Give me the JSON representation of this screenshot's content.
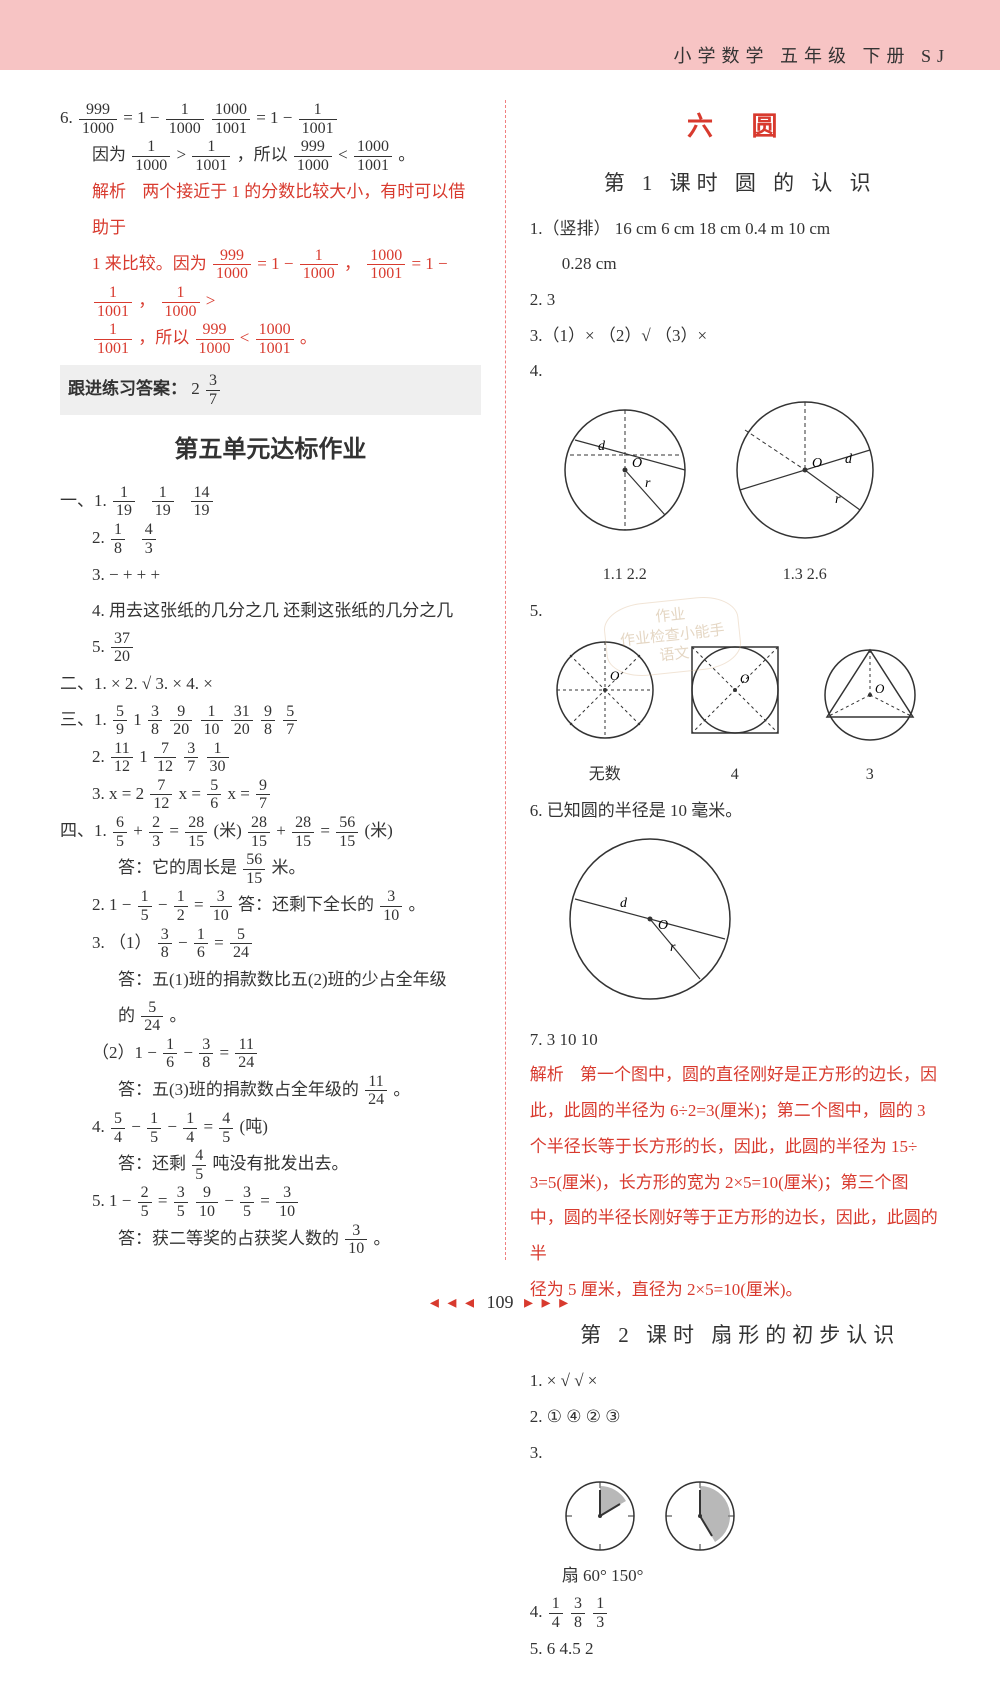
{
  "header": {
    "right": "小学数学  五年级  下册  SJ"
  },
  "page_number": "109",
  "left": {
    "q6_line1_a": "6. ",
    "q6_line1_b": " = 1 − ",
    "q6_line1_c": "   ",
    "q6_line1_d": " = 1 − ",
    "q6_frac_999_1000_n": "999",
    "q6_frac_999_1000_d": "1000",
    "q6_frac_1_1000_n": "1",
    "q6_frac_1_1000_d": "1000",
    "q6_frac_1000_1001_n": "1000",
    "q6_frac_1000_1001_d": "1001",
    "q6_frac_1_1001_n": "1",
    "q6_frac_1_1001_d": "1001",
    "q6_line2_a": "因为 ",
    "q6_line2_b": " > ",
    "q6_line2_c": " ，所以 ",
    "q6_line2_d": " < ",
    "q6_line2_e": "。",
    "q6_expl_lbl": "解析",
    "q6_expl_1": "两个接近于 1 的分数比较大小，有时可以借助于",
    "q6_expl_2a": "1 来比较。因为 ",
    "q6_expl_2b": " = 1 − ",
    "q6_expl_2c": "，",
    "q6_expl_2d": " = 1 − ",
    "q6_expl_2e": "，",
    "q6_expl_2f": " >",
    "q6_expl_3a": "",
    "q6_expl_3b": "，所以 ",
    "q6_expl_3c": " < ",
    "q6_expl_3d": "。",
    "follow_lbl": "跟进练习答案：",
    "follow_ans": "2",
    "follow_frac_n": "3",
    "follow_frac_d": "7",
    "unit_title": "第五单元达标作业",
    "s1": "一、1. ",
    "s1_f1n": "1",
    "s1_f1d": "19",
    "s1_f2n": "1",
    "s1_f2d": "19",
    "s1_f3n": "14",
    "s1_f3d": "19",
    "s1_2": "2. ",
    "s1_2f1n": "1",
    "s1_2f1d": "8",
    "s1_2f2n": "4",
    "s1_2f2d": "3",
    "s1_3": "3.  −   +   +   +",
    "s1_4": "4. 用去这张纸的几分之几   还剩这张纸的几分之几",
    "s1_5": "5. ",
    "s1_5fn": "37",
    "s1_5fd": "20",
    "s2": "二、1. ×   2. √   3. ×   4. ×",
    "s3": "三、1. ",
    "s3_1_vals": [
      "5/9",
      "1",
      "3/8",
      "9/20",
      "1/10",
      "31/20",
      "9/8",
      "5/7"
    ],
    "s3_2": "2. ",
    "s3_2_vals": [
      "11/12",
      "1",
      "7/12",
      "3/7",
      "1/30"
    ],
    "s3_3a": "3.  x = 2",
    "s3_3f1n": "7",
    "s3_3f1d": "12",
    "s3_3b": "   x = ",
    "s3_3f2n": "5",
    "s3_3f2d": "6",
    "s3_3c": "   x = ",
    "s3_3f3n": "9",
    "s3_3f3d": "7",
    "s4": "四、1. ",
    "s4_1a_n": "6",
    "s4_1a_d": "5",
    "s4_1b_n": "2",
    "s4_1b_d": "3",
    "s4_1c_n": "28",
    "s4_1c_d": "15",
    "s4_1_mid": " (米)   ",
    "s4_1d_n": "28",
    "s4_1d_d": "15",
    "s4_1e_n": "28",
    "s4_1e_d": "15",
    "s4_1f_n": "56",
    "s4_1f_d": "15",
    "s4_1_end": " (米)",
    "s4_1_ans": "答：它的周长是",
    "s4_1_ans_f_n": "56",
    "s4_1_ans_f_d": "15",
    "s4_1_ans_end": "米。",
    "s4_2": "2.  1 − ",
    "s4_2f1n": "1",
    "s4_2f1d": "5",
    "s4_2_m": " − ",
    "s4_2f2n": "1",
    "s4_2f2d": "2",
    "s4_2_eq": " = ",
    "s4_2f3n": "3",
    "s4_2f3d": "10",
    "s4_2_ans": "   答：还剩下全长的",
    "s4_2_ans_end": "。",
    "s4_3": "3. （1）",
    "s4_3f1n": "3",
    "s4_3f1d": "8",
    "s4_3_m": " − ",
    "s4_3f2n": "1",
    "s4_3f2d": "6",
    "s4_3_eq": " = ",
    "s4_3f3n": "5",
    "s4_3f3d": "24",
    "s4_3_ans1": "答：五(1)班的捐款数比五(2)班的少占全年级",
    "s4_3_ans2a": "的",
    "s4_3_ans2_fn": "5",
    "s4_3_ans2_fd": "24",
    "s4_3_ans2b": "。",
    "s4_3b": "（2）1 − ",
    "s4_3bf1n": "1",
    "s4_3bf1d": "6",
    "s4_3b_m": " − ",
    "s4_3bf2n": "3",
    "s4_3bf2d": "8",
    "s4_3b_eq": " = ",
    "s4_3bf3n": "11",
    "s4_3bf3d": "24",
    "s4_3b_ans": "答：五(3)班的捐款数占全年级的",
    "s4_3b_ans_end": "。",
    "s4_4": "4. ",
    "s4_4f1n": "5",
    "s4_4f1d": "4",
    "s4_4_m1": " − ",
    "s4_4f2n": "1",
    "s4_4f2d": "5",
    "s4_4_m2": " − ",
    "s4_4f3n": "1",
    "s4_4f3d": "4",
    "s4_4_eq": " = ",
    "s4_4f4n": "4",
    "s4_4f4d": "5",
    "s4_4_end": " (吨)",
    "s4_4_ans": "答：还剩",
    "s4_4_ansf_n": "4",
    "s4_4_ansf_d": "5",
    "s4_4_ans_end": "吨没有批发出去。",
    "s4_5": "5.  1 − ",
    "s4_5f1n": "2",
    "s4_5f1d": "5",
    "s4_5_eq": " = ",
    "s4_5f2n": "3",
    "s4_5f2d": "5",
    "s4_5_sp": "    ",
    "s4_5f3n": "9",
    "s4_5f3d": "10",
    "s4_5_m": " − ",
    "s4_5f4n": "3",
    "s4_5f4d": "5",
    "s4_5_eq2": " = ",
    "s4_5f5n": "3",
    "s4_5f5d": "10",
    "s4_5_ans": "答：获二等奖的占获奖人数的",
    "s4_5_ans_end": "。"
  },
  "right": {
    "chapter": "六  圆",
    "lesson1": "第 1 课时   圆 的 认 识",
    "r1": "1.（竖排） 16 cm   6 cm    18 cm   0.4 m   10 cm",
    "r1b": "0.28 cm",
    "r2": "2. 3",
    "r3": "3.（1）×  （2）√  （3）×",
    "r4": "4.",
    "r4_l1": "1.1   2.2",
    "r4_l2": "1.3   2.6",
    "r5": "5.",
    "r5_labels": [
      "无数",
      "4",
      "3"
    ],
    "r6": "6. 已知圆的半径是 10 毫米。",
    "r7": "7.  3   10   10",
    "r_expl_lbl": "解析",
    "r_expl_1": "第一个图中，圆的直径刚好是正方形的边长，因",
    "r_expl_2": "此，此圆的半径为 6÷2=3(厘米)；第二个图中，圆的 3",
    "r_expl_3": "个半径长等于长方形的长，因此，此圆的半径为 15÷",
    "r_expl_4": "3=5(厘米)，长方形的宽为 2×5=10(厘米)；第三个图",
    "r_expl_5": "中，圆的半径长刚好等于正方形的边长，因此，此圆的半",
    "r_expl_6": "径为 5 厘米，直径为 2×5=10(厘米)。",
    "lesson2": "第 2 课时   扇形的初步认识",
    "l2_1": "1.  ×   √   √   ×",
    "l2_2": "2.  ①   ④   ②   ③",
    "l2_3": "3.",
    "l2_3_lbls": "   扇   60°   150°",
    "l2_4": "4. ",
    "l2_4_vals": [
      "1/4",
      "3/8",
      "1/3"
    ],
    "l2_5": "5.  6   4.5   2"
  },
  "stamp": {
    "l1": "作业",
    "l2": "作业检查小能手",
    "l3": "语文"
  }
}
